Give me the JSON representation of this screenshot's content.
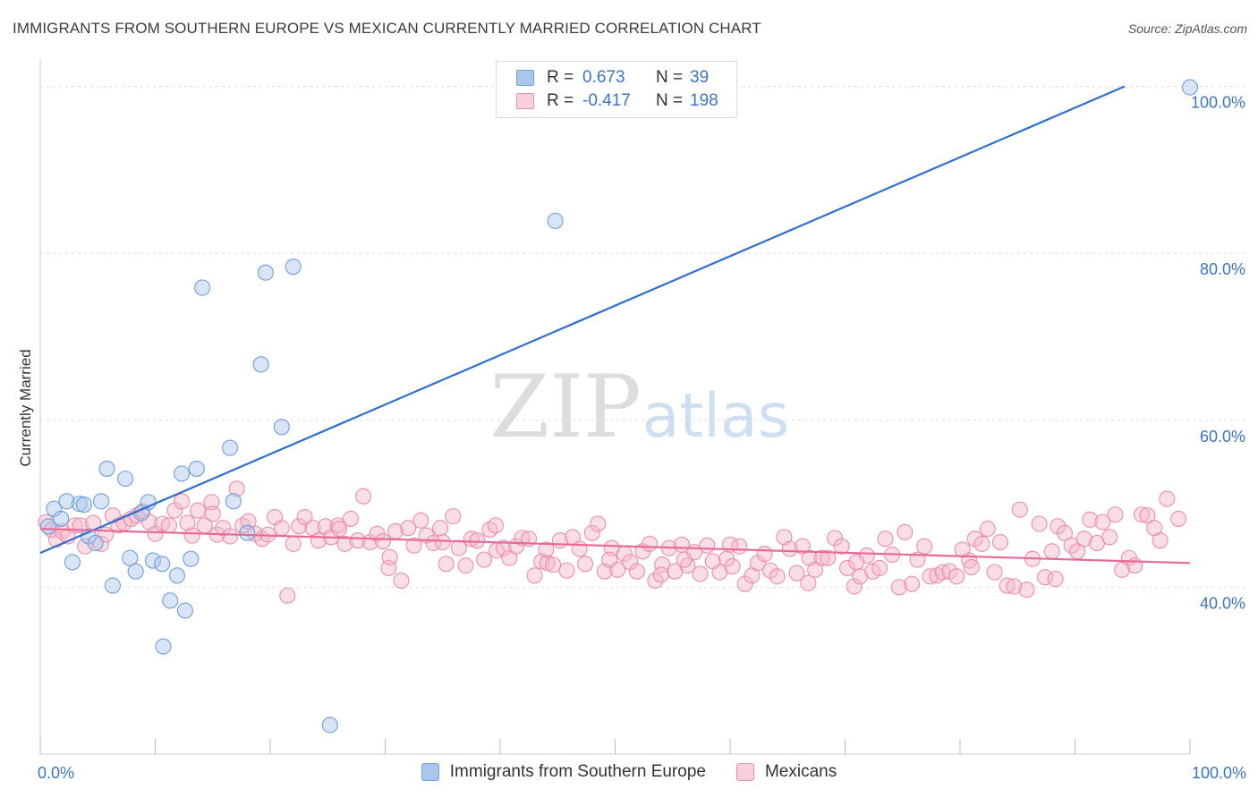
{
  "title": "IMMIGRANTS FROM SOUTHERN EUROPE VS MEXICAN CURRENTLY MARRIED CORRELATION CHART",
  "source": "Source: ZipAtlas.com",
  "watermark": {
    "zip": "ZIP",
    "atlas": "atlas"
  },
  "legend": {
    "rows": [
      {
        "r_label": "R =",
        "r_value": "0.673",
        "n_label": "N =",
        "n_value": "39",
        "color": "#a9c6ec"
      },
      {
        "r_label": "R =",
        "r_value": "-0.417",
        "n_label": "N =",
        "n_value": "198",
        "color": "#f4b6c8"
      }
    ]
  },
  "bottom_legend": [
    {
      "label": "Immigrants from Southern Europe",
      "color": "#a9c6ec"
    },
    {
      "label": "Mexicans",
      "color": "#f4b6c8"
    }
  ],
  "chart_data": {
    "type": "scatter",
    "title": "IMMIGRANTS FROM SOUTHERN EUROPE VS MEXICAN CURRENTLY MARRIED CORRELATION CHART",
    "xlabel": "",
    "ylabel": "Currently Married",
    "xlim": [
      0,
      100
    ],
    "ylim": [
      20,
      102
    ],
    "x_tick_labels": [
      "0.0%",
      "100.0%"
    ],
    "y_ticks": [
      40,
      60,
      80,
      100
    ],
    "y_tick_labels": [
      "40.0%",
      "60.0%",
      "80.0%",
      "100.0%"
    ],
    "grid": true,
    "legend_position": "top-center",
    "series": [
      {
        "name": "Immigrants from Southern Europe",
        "color": "#a9c6ec",
        "stroke": "#6f9fda",
        "points": [
          [
            0.7,
            47.3
          ],
          [
            1.2,
            49.4
          ],
          [
            1.8,
            48.2
          ],
          [
            2.3,
            50.3
          ],
          [
            2.8,
            43.0
          ],
          [
            3.4,
            50.0
          ],
          [
            3.8,
            49.9
          ],
          [
            4.2,
            46.1
          ],
          [
            4.8,
            45.3
          ],
          [
            5.3,
            50.3
          ],
          [
            5.8,
            54.2
          ],
          [
            6.3,
            40.2
          ],
          [
            7.4,
            53.0
          ],
          [
            7.8,
            43.5
          ],
          [
            8.3,
            41.9
          ],
          [
            8.8,
            48.9
          ],
          [
            9.4,
            50.2
          ],
          [
            9.8,
            43.2
          ],
          [
            10.6,
            42.8
          ],
          [
            10.7,
            32.9
          ],
          [
            11.3,
            38.4
          ],
          [
            11.9,
            41.4
          ],
          [
            12.3,
            53.6
          ],
          [
            12.6,
            37.2
          ],
          [
            13.1,
            43.4
          ],
          [
            13.6,
            54.2
          ],
          [
            14.1,
            75.9
          ],
          [
            16.5,
            56.7
          ],
          [
            16.8,
            50.3
          ],
          [
            18.0,
            46.5
          ],
          [
            19.2,
            66.7
          ],
          [
            19.6,
            77.7
          ],
          [
            21.0,
            59.2
          ],
          [
            22.0,
            78.4
          ],
          [
            25.2,
            23.5
          ],
          [
            44.8,
            83.9
          ],
          [
            100.0,
            99.9
          ]
        ]
      },
      {
        "name": "Mexicans",
        "color": "#f4b6c8",
        "stroke": "#ea8fab",
        "points": [
          [
            0.5,
            47.8
          ],
          [
            1.0,
            46.9
          ],
          [
            1.4,
            45.7
          ],
          [
            1.9,
            46.7
          ],
          [
            2.4,
            46.1
          ],
          [
            3.0,
            47.4
          ],
          [
            3.5,
            47.4
          ],
          [
            3.9,
            44.9
          ],
          [
            4.6,
            47.7
          ],
          [
            5.3,
            45.2
          ],
          [
            5.7,
            46.3
          ],
          [
            6.3,
            48.6
          ],
          [
            6.8,
            47.4
          ],
          [
            7.3,
            47.7
          ],
          [
            7.9,
            48.2
          ],
          [
            8.4,
            48.6
          ],
          [
            8.9,
            49.1
          ],
          [
            9.5,
            47.8
          ],
          [
            10.0,
            46.4
          ],
          [
            10.6,
            47.6
          ],
          [
            11.2,
            47.4
          ],
          [
            11.7,
            49.2
          ],
          [
            12.3,
            50.3
          ],
          [
            12.8,
            47.7
          ],
          [
            13.2,
            46.2
          ],
          [
            13.7,
            49.2
          ],
          [
            14.3,
            47.4
          ],
          [
            14.9,
            50.2
          ],
          [
            15.4,
            46.3
          ],
          [
            15.9,
            47.1
          ],
          [
            16.5,
            46.1
          ],
          [
            17.1,
            51.8
          ],
          [
            17.6,
            47.4
          ],
          [
            18.1,
            47.9
          ],
          [
            18.7,
            46.4
          ],
          [
            19.3,
            45.8
          ],
          [
            19.8,
            46.3
          ],
          [
            20.4,
            48.4
          ],
          [
            21.0,
            47.1
          ],
          [
            21.5,
            39.0
          ],
          [
            22.0,
            45.2
          ],
          [
            22.5,
            47.3
          ],
          [
            23.0,
            48.4
          ],
          [
            23.7,
            47.1
          ],
          [
            24.2,
            45.6
          ],
          [
            24.8,
            47.3
          ],
          [
            25.3,
            46.0
          ],
          [
            25.9,
            47.4
          ],
          [
            26.5,
            45.2
          ],
          [
            27.0,
            48.2
          ],
          [
            27.6,
            45.6
          ],
          [
            28.1,
            50.9
          ],
          [
            28.7,
            45.4
          ],
          [
            29.3,
            46.4
          ],
          [
            29.8,
            45.5
          ],
          [
            30.3,
            42.3
          ],
          [
            30.9,
            46.7
          ],
          [
            31.4,
            40.8
          ],
          [
            32.0,
            47.1
          ],
          [
            32.5,
            45.0
          ],
          [
            33.1,
            48.0
          ],
          [
            33.6,
            46.2
          ],
          [
            34.2,
            45.3
          ],
          [
            34.8,
            47.1
          ],
          [
            35.3,
            42.8
          ],
          [
            35.9,
            48.5
          ],
          [
            36.4,
            44.7
          ],
          [
            37.0,
            42.6
          ],
          [
            37.5,
            45.8
          ],
          [
            38.0,
            45.6
          ],
          [
            38.6,
            43.3
          ],
          [
            39.1,
            46.9
          ],
          [
            39.7,
            44.4
          ],
          [
            40.3,
            44.7
          ],
          [
            40.8,
            43.5
          ],
          [
            41.4,
            44.9
          ],
          [
            41.9,
            45.9
          ],
          [
            42.5,
            45.8
          ],
          [
            43.0,
            41.4
          ],
          [
            43.6,
            43.1
          ],
          [
            44.1,
            42.9
          ],
          [
            44.6,
            42.7
          ],
          [
            45.2,
            45.6
          ],
          [
            45.8,
            42.0
          ],
          [
            46.3,
            46.0
          ],
          [
            46.9,
            44.6
          ],
          [
            47.4,
            42.8
          ],
          [
            48.0,
            46.5
          ],
          [
            48.5,
            47.6
          ],
          [
            49.1,
            41.9
          ],
          [
            49.7,
            44.7
          ],
          [
            50.2,
            42.1
          ],
          [
            50.8,
            44.0
          ],
          [
            51.3,
            43.0
          ],
          [
            51.9,
            41.9
          ],
          [
            52.4,
            44.3
          ],
          [
            53.0,
            45.2
          ],
          [
            53.5,
            40.8
          ],
          [
            54.1,
            42.7
          ],
          [
            54.7,
            44.7
          ],
          [
            55.2,
            41.9
          ],
          [
            55.8,
            45.1
          ],
          [
            56.3,
            42.6
          ],
          [
            56.9,
            44.2
          ],
          [
            57.4,
            41.6
          ],
          [
            58.0,
            45.0
          ],
          [
            58.5,
            43.1
          ],
          [
            59.1,
            41.8
          ],
          [
            59.7,
            43.4
          ],
          [
            60.2,
            42.5
          ],
          [
            60.8,
            44.9
          ],
          [
            61.3,
            40.4
          ],
          [
            61.9,
            41.4
          ],
          [
            62.4,
            42.9
          ],
          [
            63.0,
            44.0
          ],
          [
            63.5,
            42.0
          ],
          [
            64.1,
            41.3
          ],
          [
            64.7,
            46.0
          ],
          [
            65.2,
            44.6
          ],
          [
            65.8,
            41.7
          ],
          [
            66.3,
            44.9
          ],
          [
            66.9,
            43.5
          ],
          [
            67.4,
            42.1
          ],
          [
            68.0,
            43.5
          ],
          [
            68.5,
            43.5
          ],
          [
            69.1,
            45.9
          ],
          [
            69.7,
            44.9
          ],
          [
            70.2,
            42.3
          ],
          [
            70.8,
            40.1
          ],
          [
            71.3,
            41.3
          ],
          [
            71.9,
            43.8
          ],
          [
            72.4,
            41.9
          ],
          [
            73.0,
            42.3
          ],
          [
            73.5,
            45.8
          ],
          [
            74.1,
            43.9
          ],
          [
            74.7,
            40.0
          ],
          [
            75.2,
            46.6
          ],
          [
            75.8,
            40.4
          ],
          [
            76.3,
            43.3
          ],
          [
            76.9,
            44.9
          ],
          [
            77.4,
            41.3
          ],
          [
            78.0,
            41.4
          ],
          [
            78.5,
            41.8
          ],
          [
            79.1,
            41.9
          ],
          [
            79.7,
            41.3
          ],
          [
            80.2,
            44.5
          ],
          [
            80.8,
            43.2
          ],
          [
            81.3,
            45.8
          ],
          [
            81.9,
            45.2
          ],
          [
            82.4,
            47.0
          ],
          [
            83.0,
            41.8
          ],
          [
            83.5,
            45.4
          ],
          [
            84.1,
            40.2
          ],
          [
            84.7,
            40.1
          ],
          [
            85.2,
            49.3
          ],
          [
            85.8,
            39.7
          ],
          [
            86.3,
            43.4
          ],
          [
            86.9,
            47.6
          ],
          [
            87.4,
            41.2
          ],
          [
            88.0,
            44.3
          ],
          [
            88.5,
            47.3
          ],
          [
            89.1,
            46.5
          ],
          [
            89.7,
            45.0
          ],
          [
            90.2,
            44.3
          ],
          [
            90.8,
            45.8
          ],
          [
            91.3,
            48.1
          ],
          [
            91.9,
            45.3
          ],
          [
            92.4,
            47.8
          ],
          [
            93.0,
            46.0
          ],
          [
            93.5,
            48.7
          ],
          [
            94.1,
            42.1
          ],
          [
            94.7,
            43.5
          ],
          [
            95.2,
            42.6
          ],
          [
            95.8,
            48.7
          ],
          [
            96.3,
            48.6
          ],
          [
            96.9,
            47.1
          ],
          [
            97.4,
            45.6
          ],
          [
            98.0,
            50.6
          ],
          [
            99.0,
            48.2
          ],
          [
            15.0,
            48.8
          ],
          [
            26.0,
            47.0
          ],
          [
            56.0,
            43.3
          ],
          [
            44.0,
            44.5
          ],
          [
            35.0,
            45.4
          ],
          [
            71.0,
            43.0
          ],
          [
            88.3,
            41.0
          ],
          [
            60.0,
            45.1
          ],
          [
            49.5,
            43.3
          ],
          [
            39.6,
            47.4
          ],
          [
            30.4,
            43.6
          ],
          [
            81.0,
            42.4
          ],
          [
            66.8,
            40.5
          ],
          [
            54.0,
            41.5
          ]
        ]
      }
    ],
    "trend_lines": [
      {
        "series": "Immigrants from Southern Europe",
        "color": "#2f6fd0",
        "from": [
          0,
          44.1
        ],
        "to": [
          94.3,
          100
        ]
      },
      {
        "series": "Mexicans",
        "color": "#e6699a",
        "from": [
          0,
          47.0
        ],
        "to": [
          100,
          42.9
        ]
      }
    ]
  }
}
